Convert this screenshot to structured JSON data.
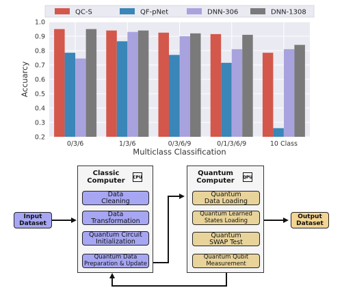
{
  "chart_data": {
    "type": "bar",
    "categories": [
      "0/3/6",
      "1/3/6",
      "0/3/6/9",
      "0/1/3/6/9",
      "10 Class"
    ],
    "series": [
      {
        "name": "QC-S",
        "color": "#d4574b",
        "values": [
          0.95,
          0.94,
          0.925,
          0.915,
          0.785
        ]
      },
      {
        "name": "QF-pNet",
        "color": "#3a86b8",
        "values": [
          0.785,
          0.865,
          0.77,
          0.715,
          0.26
        ]
      },
      {
        "name": "DNN-306",
        "color": "#a8a3de",
        "values": [
          0.745,
          0.93,
          0.9,
          0.81,
          0.81
        ]
      },
      {
        "name": "DNN-1308",
        "color": "#7a7a7a",
        "values": [
          0.95,
          0.94,
          0.92,
          0.91,
          0.84
        ]
      }
    ],
    "xlabel": "Multiclass Classification",
    "ylabel": "Accuarcy",
    "ylim": [
      0.2,
      1.0
    ],
    "yticks": [
      "0.2",
      "0.3",
      "0.4",
      "0.5",
      "0.6",
      "0.7",
      "0.8",
      "0.9",
      "1.0"
    ],
    "grid": true,
    "legend_position": "top"
  },
  "diagram": {
    "input_label": "Input\nDataset",
    "output_label": "Output\nDataset",
    "classic": {
      "title": "Classic\nComputer",
      "chip_label": "CPU",
      "steps": [
        "Data\nCleaning",
        "Data\nTransformation",
        "Quantum Circuit\nInitialization",
        "Quantum Data\nPreparation & Update"
      ]
    },
    "quantum": {
      "title": "Quantum\nComputer",
      "chip_label": "QPU",
      "steps": [
        "Quantum\nData Loading",
        "Quantum Learned\nStates Loading",
        "Quantum\nSWAP Test",
        "Quantum Qubit\nMeasurement"
      ]
    }
  }
}
